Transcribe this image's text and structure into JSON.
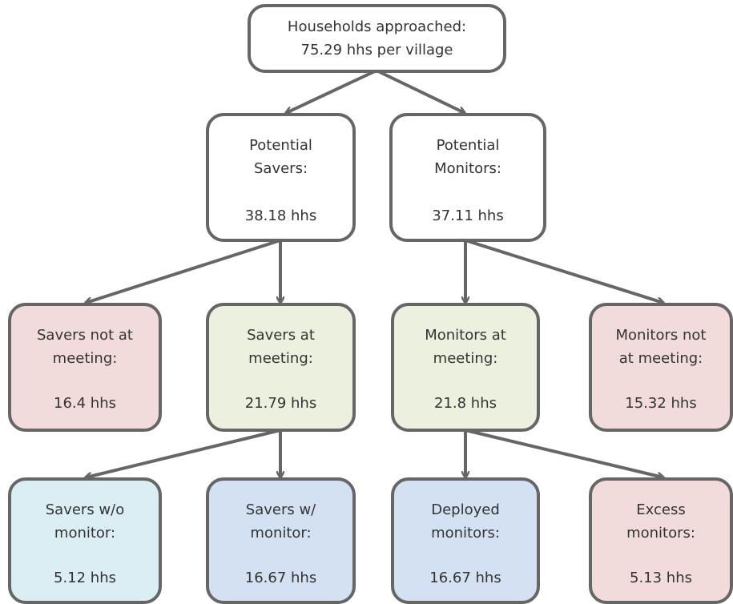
{
  "nodes": [
    {
      "lines": [
        "Households approached:",
        "75.29 hhs per village"
      ]
    },
    {
      "lines": [
        "Potential",
        "Savers:"
      ],
      "value": "38.18 hhs"
    },
    {
      "lines": [
        "Potential",
        "Monitors:"
      ],
      "value": "37.11 hhs"
    },
    {
      "lines": [
        "Savers not at",
        "meeting:"
      ],
      "value": "16.4 hhs"
    },
    {
      "lines": [
        "Savers at",
        "meeting:"
      ],
      "value": "21.79 hhs"
    },
    {
      "lines": [
        "Monitors at",
        "meeting:"
      ],
      "value": "21.8 hhs"
    },
    {
      "lines": [
        "Monitors not",
        "at meeting:"
      ],
      "value": "15.32 hhs"
    },
    {
      "lines": [
        "Savers w/o",
        "monitor:"
      ],
      "value": "5.12 hhs"
    },
    {
      "lines": [
        "Savers w/",
        "monitor:"
      ],
      "value": "16.67 hhs"
    },
    {
      "lines": [
        "Deployed",
        "monitors:"
      ],
      "value": "16.67 hhs"
    },
    {
      "lines": [
        "Excess",
        "monitors:"
      ],
      "value": "5.13 hhs"
    }
  ]
}
